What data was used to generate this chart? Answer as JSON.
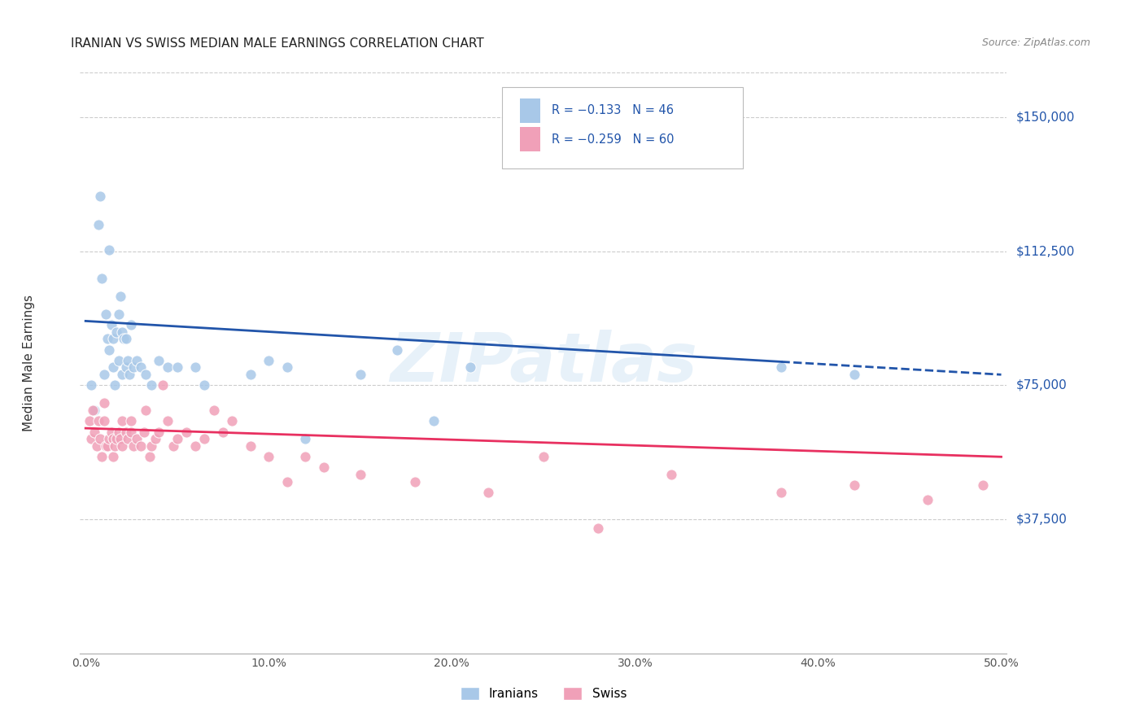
{
  "title": "IRANIAN VS SWISS MEDIAN MALE EARNINGS CORRELATION CHART",
  "source": "Source: ZipAtlas.com",
  "ylabel": "Median Male Earnings",
  "ytick_labels": [
    "$37,500",
    "$75,000",
    "$112,500",
    "$150,000"
  ],
  "ytick_values": [
    37500,
    75000,
    112500,
    150000
  ],
  "ymin": 0,
  "ymax": 162500,
  "xmin": -0.003,
  "xmax": 0.503,
  "watermark": "ZIPatlas",
  "blue_color": "#a8c8e8",
  "pink_color": "#f0a0b8",
  "blue_line_color": "#2255aa",
  "pink_line_color": "#e83060",
  "title_color": "#222222",
  "axis_label_color": "#2255aa",
  "background_color": "#ffffff",
  "grid_color": "#cccccc",
  "iranians_x": [
    0.003,
    0.005,
    0.007,
    0.008,
    0.009,
    0.01,
    0.011,
    0.012,
    0.013,
    0.013,
    0.014,
    0.015,
    0.015,
    0.016,
    0.017,
    0.018,
    0.018,
    0.019,
    0.02,
    0.02,
    0.021,
    0.022,
    0.022,
    0.023,
    0.024,
    0.025,
    0.026,
    0.028,
    0.03,
    0.033,
    0.036,
    0.04,
    0.045,
    0.05,
    0.06,
    0.065,
    0.09,
    0.1,
    0.11,
    0.12,
    0.15,
    0.17,
    0.19,
    0.21,
    0.38,
    0.42
  ],
  "iranians_y": [
    75000,
    68000,
    120000,
    128000,
    105000,
    78000,
    95000,
    88000,
    113000,
    85000,
    92000,
    80000,
    88000,
    75000,
    90000,
    95000,
    82000,
    100000,
    78000,
    90000,
    88000,
    80000,
    88000,
    82000,
    78000,
    92000,
    80000,
    82000,
    80000,
    78000,
    75000,
    82000,
    80000,
    80000,
    80000,
    75000,
    78000,
    82000,
    80000,
    60000,
    78000,
    85000,
    65000,
    80000,
    80000,
    78000
  ],
  "swiss_x": [
    0.002,
    0.003,
    0.004,
    0.005,
    0.006,
    0.007,
    0.008,
    0.009,
    0.01,
    0.01,
    0.011,
    0.012,
    0.013,
    0.014,
    0.015,
    0.015,
    0.016,
    0.017,
    0.018,
    0.019,
    0.02,
    0.02,
    0.022,
    0.023,
    0.025,
    0.025,
    0.026,
    0.028,
    0.03,
    0.032,
    0.033,
    0.035,
    0.036,
    0.038,
    0.04,
    0.042,
    0.045,
    0.048,
    0.05,
    0.055,
    0.06,
    0.065,
    0.07,
    0.075,
    0.08,
    0.09,
    0.1,
    0.11,
    0.12,
    0.13,
    0.15,
    0.18,
    0.22,
    0.25,
    0.28,
    0.32,
    0.38,
    0.42,
    0.46,
    0.49
  ],
  "swiss_y": [
    65000,
    60000,
    68000,
    62000,
    58000,
    65000,
    60000,
    55000,
    65000,
    70000,
    58000,
    58000,
    60000,
    62000,
    60000,
    55000,
    58000,
    60000,
    62000,
    60000,
    65000,
    58000,
    62000,
    60000,
    62000,
    65000,
    58000,
    60000,
    58000,
    62000,
    68000,
    55000,
    58000,
    60000,
    62000,
    75000,
    65000,
    58000,
    60000,
    62000,
    58000,
    60000,
    68000,
    62000,
    65000,
    58000,
    55000,
    48000,
    55000,
    52000,
    50000,
    48000,
    45000,
    55000,
    35000,
    50000,
    45000,
    47000,
    43000,
    47000
  ]
}
